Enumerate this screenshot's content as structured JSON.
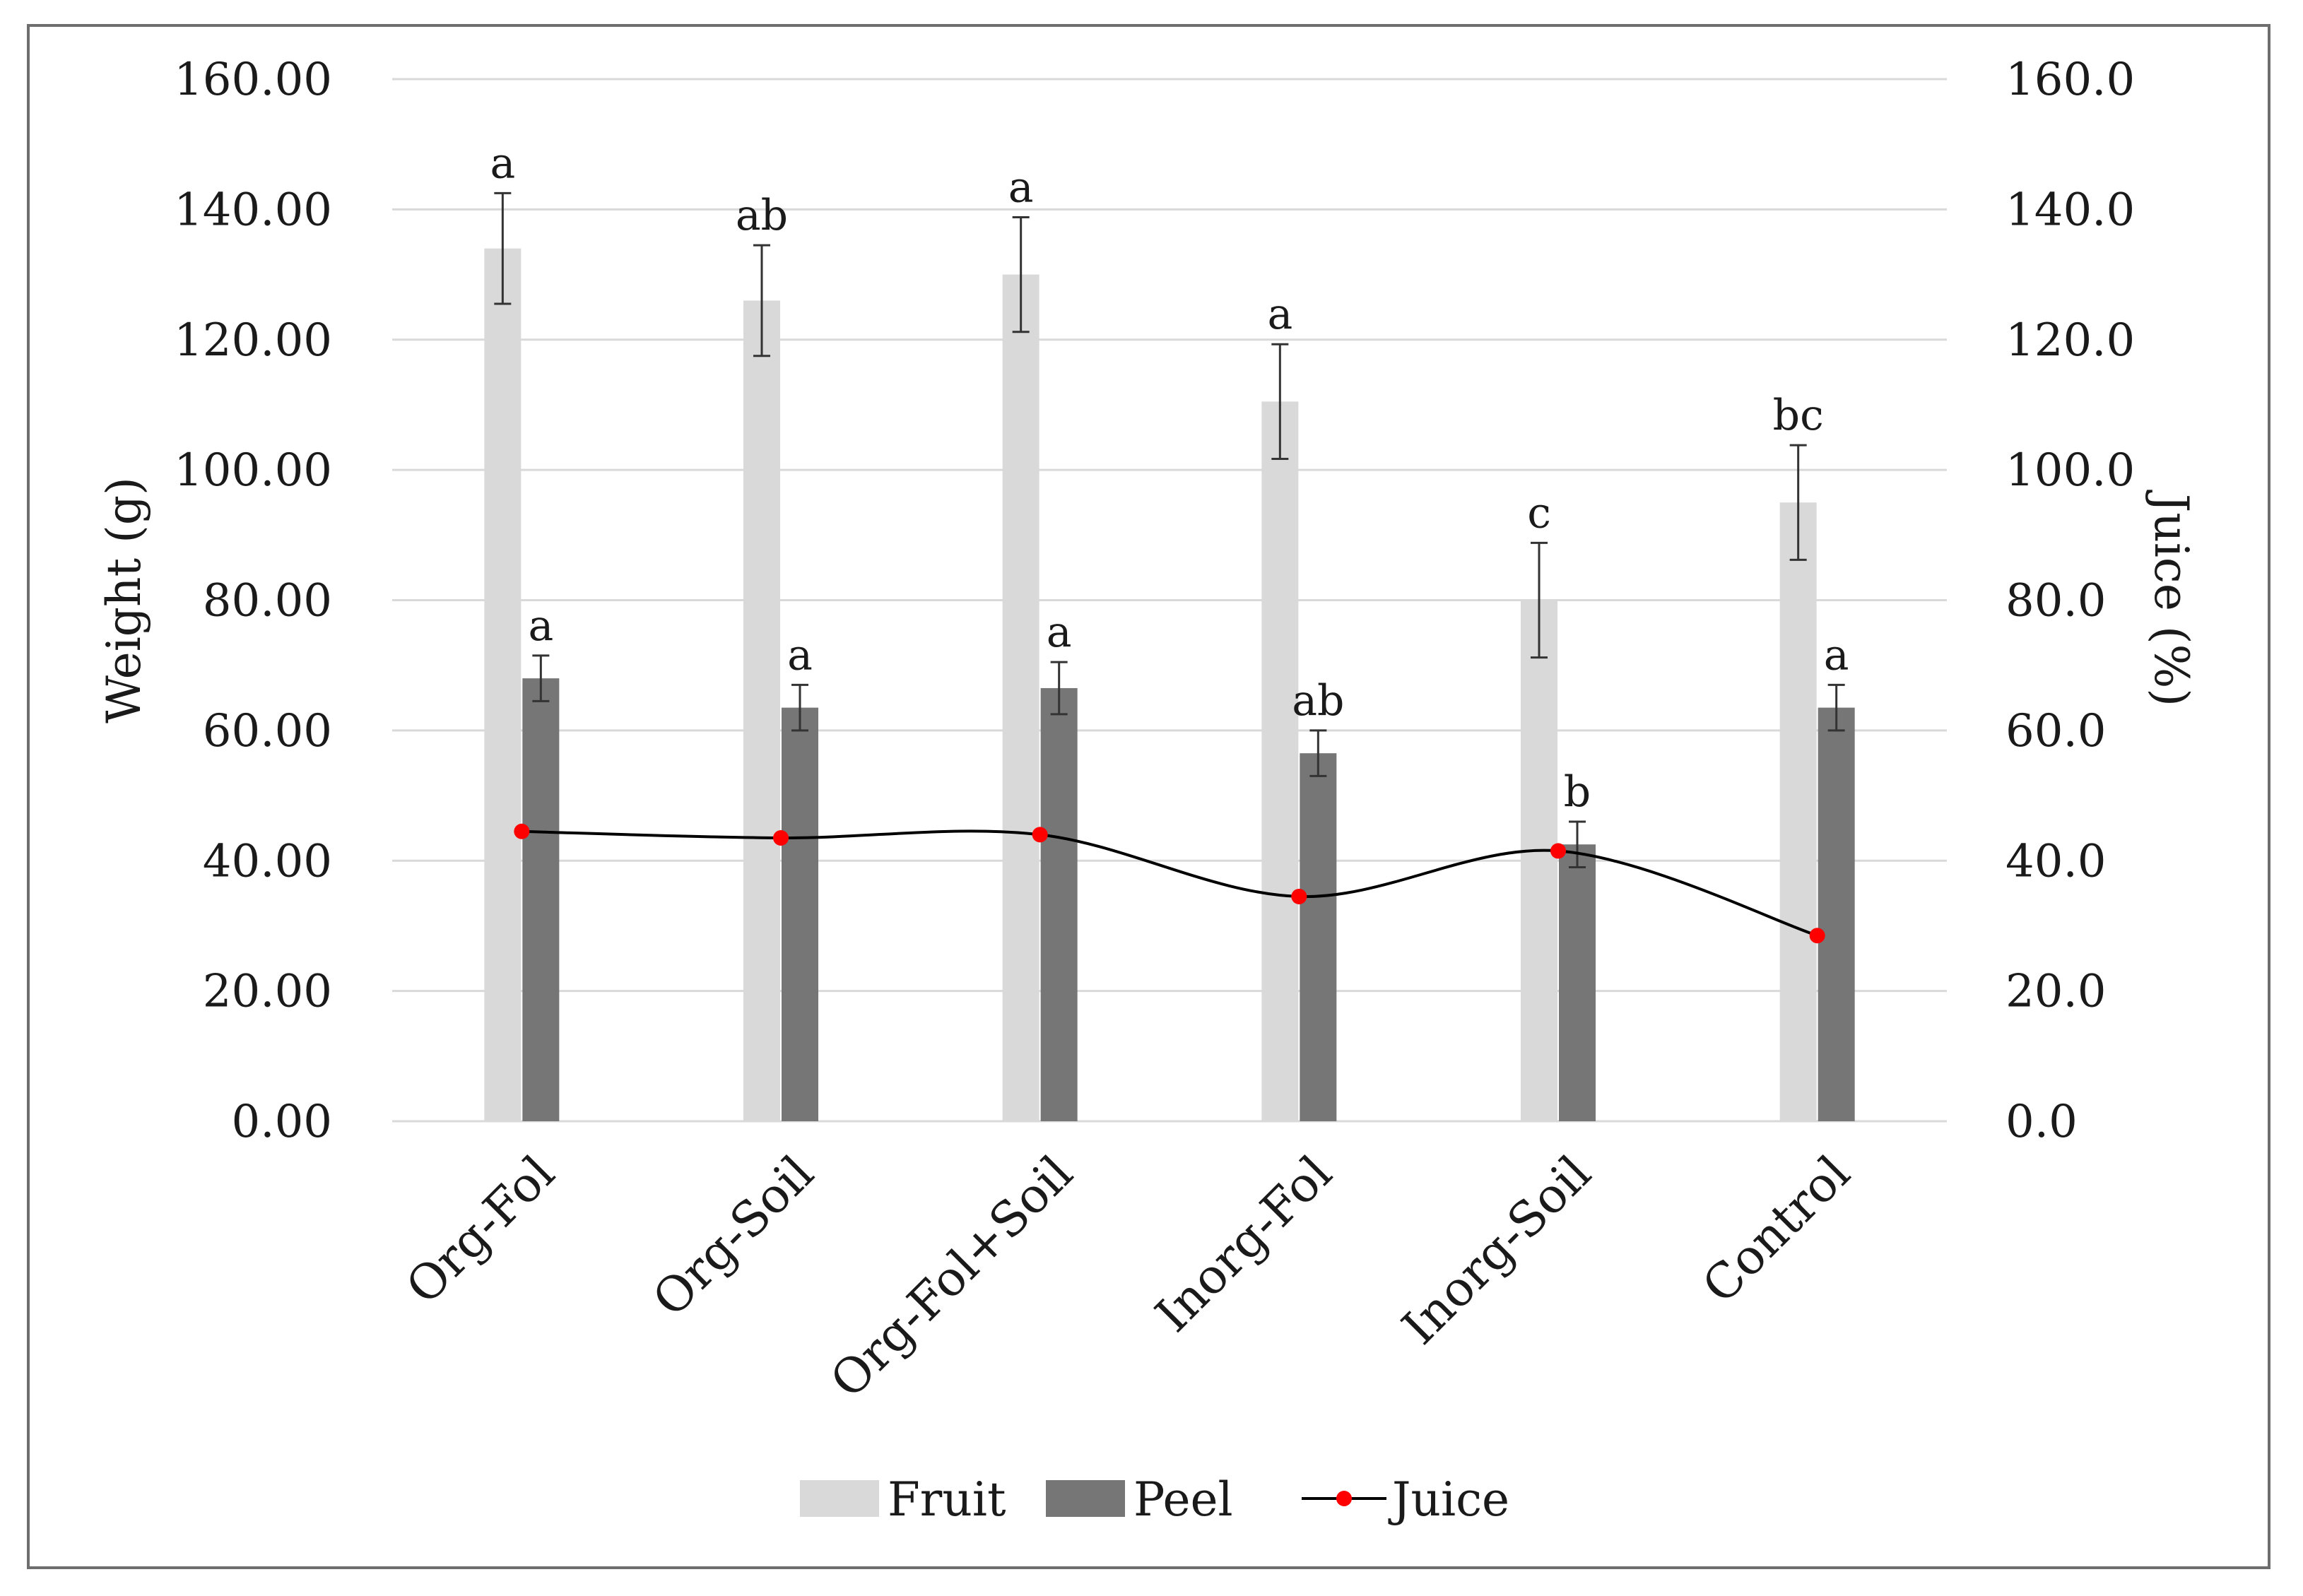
{
  "chart_data": {
    "type": "bar",
    "categories": [
      "Org-Fol",
      "Org-Soil",
      "Org-Fol+Soil",
      "Inorg-Fol",
      "Inorg-Soil",
      "Control"
    ],
    "series": [
      {
        "name": "Fruit",
        "kind": "bar",
        "axis": "left",
        "color": "#d9d9d9",
        "values": [
          134,
          126,
          130,
          110.5,
          80,
          95
        ],
        "error": [
          8.5,
          8.5,
          8.8,
          8.8,
          8.8,
          8.8
        ],
        "letters": [
          "a",
          "ab",
          "a",
          "a",
          "c",
          "bc"
        ]
      },
      {
        "name": "Peel",
        "kind": "bar",
        "axis": "left",
        "color": "#767676",
        "values": [
          68,
          63.5,
          66.5,
          56.5,
          42.5,
          63.5
        ],
        "error": [
          3.5,
          3.5,
          4,
          3.5,
          3.5,
          3.5
        ],
        "letters": [
          "a",
          "a",
          "a",
          "ab",
          "b",
          "a"
        ]
      },
      {
        "name": "Juice",
        "kind": "line",
        "axis": "right",
        "color": "#000000",
        "marker_color": "#ff0000",
        "values": [
          44.5,
          43.5,
          44,
          34.5,
          41.5,
          28.5
        ]
      }
    ],
    "ylabel": "Weight (g)",
    "y2label": "Juice (%)",
    "ylim": [
      0,
      160
    ],
    "y2lim": [
      0,
      160
    ],
    "yticks": [
      "0.00",
      "20.00",
      "40.00",
      "60.00",
      "80.00",
      "100.00",
      "120.00",
      "140.00",
      "160.00"
    ],
    "y2ticks": [
      "0.0",
      "20.0",
      "40.0",
      "60.0",
      "80.0",
      "100.0",
      "120.0",
      "140.0",
      "160.0"
    ],
    "grid": true,
    "legend_position": "bottom"
  }
}
